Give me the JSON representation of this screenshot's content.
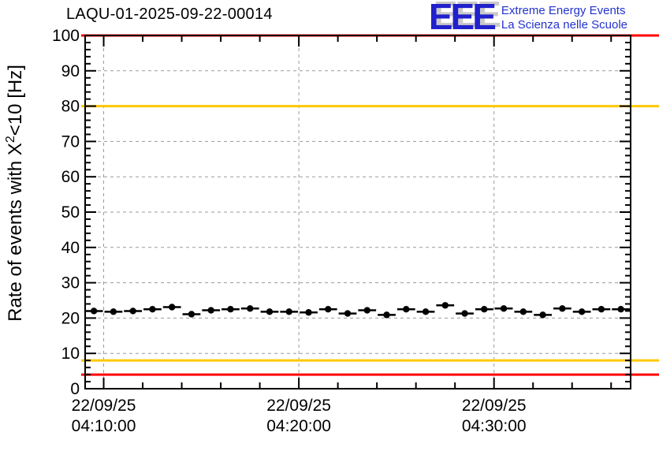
{
  "header": {
    "title": "LAQU-01-2025-09-22-00014"
  },
  "logo": {
    "acronym": "EEE",
    "line1": "Extreme Energy Events",
    "line2": "La Scienza nelle Scuole",
    "color": "#2333cc"
  },
  "chart_data": {
    "type": "scatter",
    "title": "LAQU-01-2025-09-22-00014",
    "xlabel": "",
    "ylabel_prefix": "Rate of events with X",
    "ylabel_sup": "2",
    "ylabel_suffix": "<10 [Hz]",
    "ylim": [
      0,
      100
    ],
    "y_major_step": 10,
    "y_minor_step": 2,
    "y_tick_labels": [
      "0",
      "10",
      "20",
      "30",
      "40",
      "50",
      "60",
      "70",
      "80",
      "90",
      "100"
    ],
    "x_domain_minutes": [
      9.05,
      37.0
    ],
    "x_minor_step_minutes": 2,
    "x_major_ticks": [
      {
        "minute": 10,
        "date": "22/09/25",
        "time": "04:10:00"
      },
      {
        "minute": 20,
        "date": "22/09/25",
        "time": "04:20:00"
      },
      {
        "minute": 30,
        "date": "22/09/25",
        "time": "04:30:00"
      }
    ],
    "grid": {
      "show": true,
      "dashed": true,
      "color": "#9a9a9a"
    },
    "thresholds": [
      {
        "name": "rate-max-alarm",
        "value": 100,
        "color": "#ff0000"
      },
      {
        "name": "rate-max-warning",
        "value": 80,
        "color": "#ffc800"
      },
      {
        "name": "rate-min-warning",
        "value": 8,
        "color": "#ffc800"
      },
      {
        "name": "rate-min-alarm",
        "value": 4,
        "color": "#ff0000"
      }
    ],
    "series": [
      {
        "name": "event-rate",
        "marker": "filled-circle",
        "color": "#000000",
        "xerr_minutes": 0.5,
        "yerr": 0.7,
        "x_minutes": [
          9.5,
          10.5,
          11.5,
          12.5,
          13.5,
          14.5,
          15.5,
          16.5,
          17.5,
          18.5,
          19.5,
          20.5,
          21.5,
          22.5,
          23.5,
          24.5,
          25.5,
          26.5,
          27.5,
          28.5,
          29.5,
          30.5,
          31.5,
          32.5,
          33.5,
          34.5,
          35.5,
          36.5
        ],
        "values": [
          22.0,
          21.8,
          22.0,
          22.5,
          23.1,
          21.1,
          22.2,
          22.5,
          22.7,
          21.8,
          21.8,
          21.6,
          22.5,
          21.3,
          22.2,
          20.9,
          22.5,
          21.8,
          23.6,
          21.3,
          22.5,
          22.7,
          21.8,
          20.9,
          22.7,
          21.8,
          22.5,
          22.5
        ]
      }
    ]
  }
}
